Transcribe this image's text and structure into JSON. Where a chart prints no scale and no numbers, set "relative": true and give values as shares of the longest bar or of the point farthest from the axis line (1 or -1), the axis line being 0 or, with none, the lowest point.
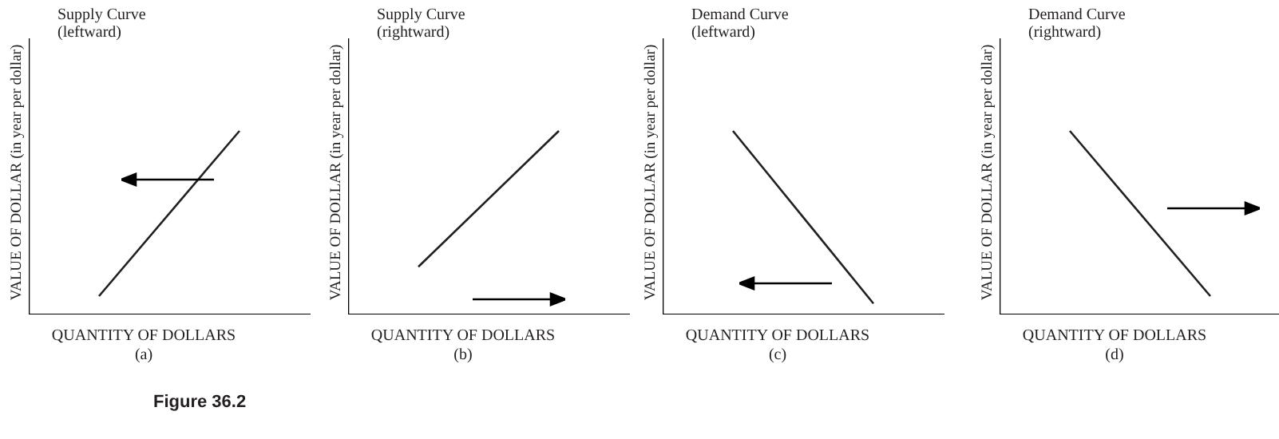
{
  "chart_data": [
    {
      "type": "line",
      "title": "Supply Curve (leftward)",
      "ylabel": "VALUE OF DOLLAR (in year per dollar)",
      "xlabel": "QUANTITY OF DOLLARS",
      "annotations": [
        "(a)",
        "Figure 36.2"
      ],
      "relative": true,
      "categories": [
        null,
        null
      ],
      "series": [
        {
          "color": "#231f20",
          "values": [
            0.1,
            1
          ]
        }
      ],
      "marker": "none",
      "tick_labels": false
    },
    {
      "type": "line",
      "title": "Supply Curve (rightward)",
      "ylabel": "VALUE OF DOLLAR (in year per dollar)",
      "xlabel": "QUANTITY OF DOLLARS",
      "annotations": [
        "(b)"
      ],
      "relative": true,
      "categories": [
        null,
        null
      ],
      "series": [
        {
          "color": "#231f20",
          "values": [
            0.26,
            1
          ]
        }
      ],
      "marker": "none",
      "tick_labels": false
    },
    {
      "type": "line",
      "title": "Demand Curve (leftward)",
      "ylabel": "VALUE OF DOLLAR (in year per dollar)",
      "xlabel": "QUANTITY OF DOLLARS",
      "annotations": [
        "(c)"
      ],
      "relative": true,
      "categories": [
        null,
        null
      ],
      "series": [
        {
          "color": "#231f20",
          "values": [
            1,
            0.06
          ]
        }
      ],
      "marker": "none",
      "tick_labels": false
    },
    {
      "type": "line",
      "title": "Demand Curve (rightward)",
      "ylabel": "VALUE OF DOLLAR (in year per dollar)",
      "xlabel": "QUANTITY OF DOLLARS",
      "annotations": [
        "(d)"
      ],
      "relative": true,
      "categories": [
        null,
        null
      ],
      "series": [
        {
          "color": "#231f20",
          "values": [
            1,
            0.1
          ]
        }
      ],
      "marker": "none",
      "tick_labels": false
    }
  ]
}
